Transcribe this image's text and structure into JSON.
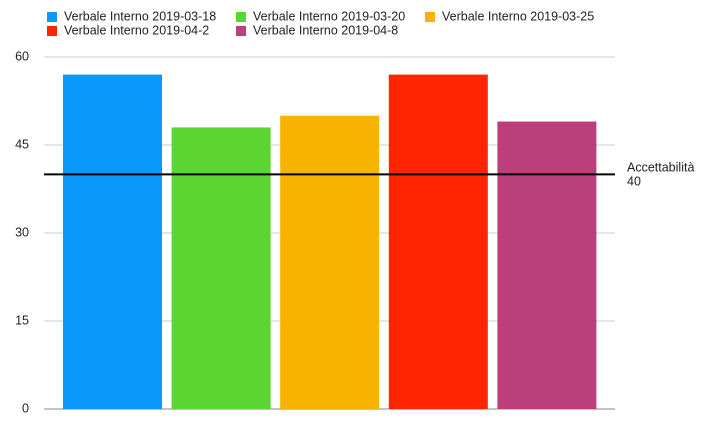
{
  "chart_data": {
    "type": "bar",
    "categories": [
      null
    ],
    "series": [
      {
        "name": "Verbale Interno 2019-03-18",
        "color": "#0b98fb",
        "values": [
          57
        ]
      },
      {
        "name": "Verbale Interno 2019-03-20",
        "color": "#5cd431",
        "values": [
          48
        ]
      },
      {
        "name": "Verbale Interno 2019-03-25",
        "color": "#f8b200",
        "values": [
          50
        ]
      },
      {
        "name": "Verbale Interno 2019-04-2",
        "color": "#ff2500",
        "values": [
          57
        ]
      },
      {
        "name": "Verbale Interno 2019-04-8",
        "color": "#bb3f7b",
        "values": [
          49
        ]
      }
    ],
    "ylim": [
      0,
      60
    ],
    "yticks": [
      0,
      15,
      30,
      45,
      60
    ],
    "grid": true,
    "reference_line": {
      "label": "Accettabilità",
      "value": 40,
      "color": "#000000"
    }
  }
}
